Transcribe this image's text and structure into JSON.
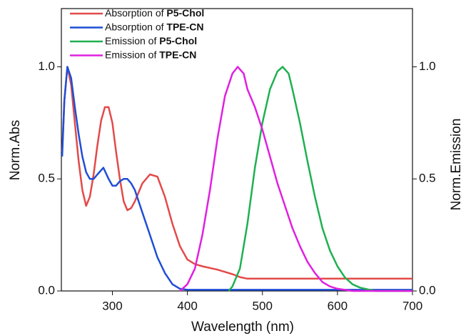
{
  "chart_data": {
    "type": "line",
    "x_label": "Wavelength (nm)",
    "y_label": "Norm.Abs",
    "y2_label": "Norm.Emission",
    "xlim": [
      232,
      700
    ],
    "xticks": [
      300,
      400,
      500,
      600,
      700
    ],
    "ylim": [
      0,
      1.26
    ],
    "yticks": [
      {
        "value": 0,
        "label": "0.0"
      },
      0.5,
      {
        "value": 1,
        "label": "1.0"
      }
    ],
    "y2lim": [
      0,
      1.26
    ],
    "y2ticks": [
      {
        "value": 0,
        "label": "0.0"
      },
      0.5,
      {
        "value": 1,
        "label": "1.0"
      }
    ],
    "series": [
      {
        "name": "Absorption of P5-Chol",
        "color": "#e34a4a",
        "x": [
          233,
          236,
          240,
          245,
          250,
          255,
          260,
          265,
          270,
          275,
          280,
          285,
          290,
          295,
          300,
          305,
          310,
          315,
          320,
          325,
          330,
          340,
          350,
          360,
          370,
          380,
          390,
          400,
          410,
          420,
          440,
          460,
          470,
          480,
          500,
          700
        ],
        "values": [
          0.62,
          0.85,
          1.0,
          0.92,
          0.75,
          0.58,
          0.45,
          0.38,
          0.42,
          0.52,
          0.65,
          0.76,
          0.82,
          0.82,
          0.75,
          0.62,
          0.5,
          0.4,
          0.36,
          0.37,
          0.4,
          0.48,
          0.52,
          0.51,
          0.42,
          0.3,
          0.2,
          0.14,
          0.12,
          0.11,
          0.095,
          0.075,
          0.062,
          0.055,
          0.055,
          0.055
        ]
      },
      {
        "name": "Absorption of TPE-CN",
        "color": "#1f4fd6",
        "x": [
          233,
          236,
          240,
          245,
          250,
          255,
          260,
          265,
          270,
          275,
          280,
          288,
          295,
          300,
          305,
          310,
          315,
          320,
          325,
          330,
          340,
          350,
          360,
          370,
          380,
          390,
          400,
          700
        ],
        "values": [
          0.6,
          0.85,
          1.0,
          0.95,
          0.82,
          0.7,
          0.6,
          0.53,
          0.5,
          0.5,
          0.52,
          0.55,
          0.5,
          0.47,
          0.47,
          0.49,
          0.5,
          0.5,
          0.48,
          0.45,
          0.35,
          0.25,
          0.15,
          0.08,
          0.03,
          0.01,
          0.005,
          0.005
        ]
      },
      {
        "name": "Emission of P5-Chol",
        "color": "#1fb050",
        "axis": "y2",
        "x": [
          455,
          460,
          470,
          480,
          490,
          500,
          510,
          520,
          527,
          535,
          540,
          550,
          560,
          570,
          580,
          590,
          600,
          610,
          620,
          630,
          650,
          700
        ],
        "values": [
          0,
          0.02,
          0.1,
          0.3,
          0.55,
          0.75,
          0.9,
          0.98,
          1.0,
          0.97,
          0.9,
          0.75,
          0.58,
          0.42,
          0.28,
          0.18,
          0.11,
          0.06,
          0.03,
          0.015,
          0,
          0
        ]
      },
      {
        "name": "Emission of TPE-CN",
        "color": "#e020e0",
        "axis": "y2",
        "x": [
          390,
          400,
          410,
          420,
          430,
          440,
          450,
          460,
          467,
          475,
          480,
          490,
          500,
          510,
          520,
          530,
          540,
          550,
          560,
          570,
          580,
          590,
          600,
          620,
          700
        ],
        "values": [
          0,
          0.03,
          0.1,
          0.25,
          0.45,
          0.68,
          0.87,
          0.97,
          1.0,
          0.97,
          0.9,
          0.82,
          0.72,
          0.6,
          0.48,
          0.38,
          0.28,
          0.2,
          0.13,
          0.08,
          0.04,
          0.02,
          0.01,
          0,
          0
        ]
      }
    ]
  }
}
